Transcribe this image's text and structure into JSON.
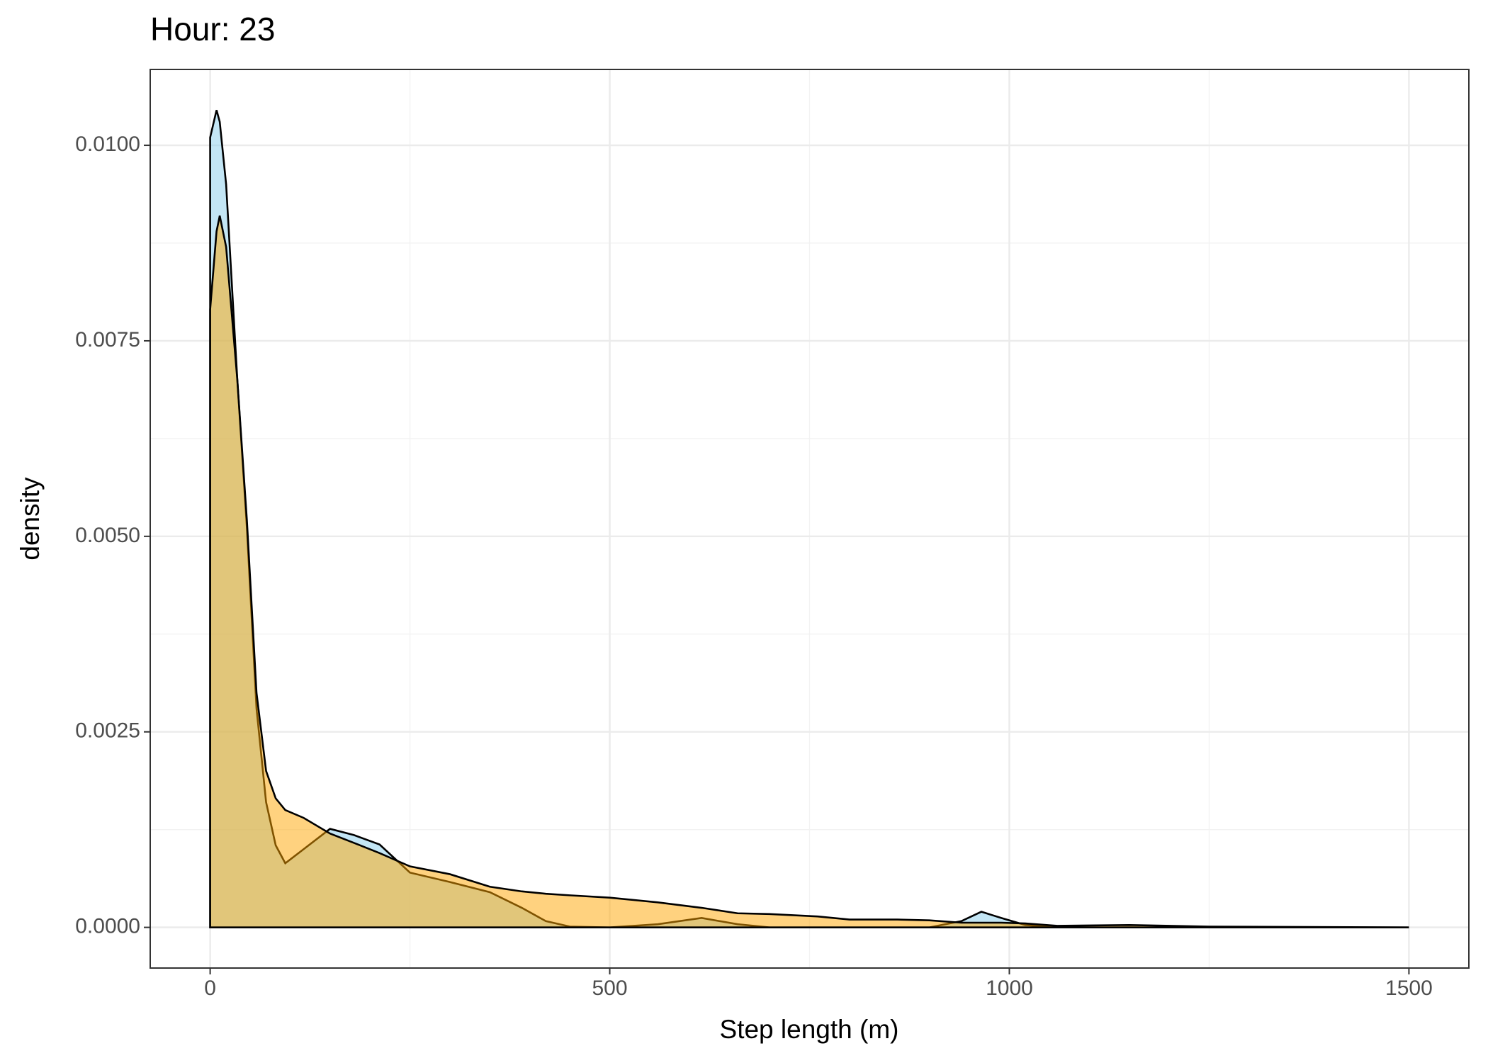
{
  "chart_data": {
    "type": "area",
    "title": "Hour: 23",
    "xlabel": "Step length (m)",
    "ylabel": "density",
    "x": [
      0,
      8,
      12,
      20,
      34,
      46,
      58,
      70,
      82,
      94,
      117,
      150,
      180,
      212,
      250,
      300,
      350,
      390,
      420,
      450,
      500,
      560,
      615,
      660,
      700,
      760,
      800,
      860,
      900,
      940,
      965,
      990,
      1020,
      1060,
      1150,
      1250,
      1500
    ],
    "series": [
      {
        "color": "#87ceeb",
        "values": [
          0.0101,
          0.01045,
          0.0103,
          0.0095,
          0.007,
          0.0051,
          0.0028,
          0.0016,
          0.00105,
          0.00082,
          0.001,
          0.00126,
          0.00118,
          0.00106,
          0.0007,
          0.00058,
          0.00045,
          0.00025,
          8e-05,
          1e-05,
          0,
          4e-05,
          0.00012,
          4e-05,
          0,
          0,
          0,
          0,
          0,
          8e-05,
          0.0002,
          0.00012,
          3e-05,
          0,
          0,
          0,
          0
        ]
      },
      {
        "color": "#ffa500",
        "values": [
          0.0079,
          0.0089,
          0.0091,
          0.0087,
          0.007,
          0.0052,
          0.003,
          0.002,
          0.00165,
          0.0015,
          0.0014,
          0.0012,
          0.00108,
          0.00095,
          0.00078,
          0.00068,
          0.00052,
          0.00046,
          0.00043,
          0.00041,
          0.00038,
          0.00032,
          0.00025,
          0.00018,
          0.00017,
          0.00014,
          0.0001,
          0.0001,
          9e-05,
          6e-05,
          6e-05,
          6e-05,
          5e-05,
          2e-05,
          3e-05,
          1e-05,
          0
        ]
      }
    ],
    "xlim": [
      -75,
      1575
    ],
    "ylim": [
      -0.00052,
      0.01097
    ],
    "xticks": [
      0,
      500,
      1000,
      1500
    ],
    "yticks": [
      {
        "value": 0,
        "label": "0.0000"
      },
      {
        "value": 0.0025,
        "label": "0.0025"
      },
      {
        "value": 0.005,
        "label": "0.0050"
      },
      {
        "value": 0.0075,
        "label": "0.0075"
      },
      {
        "value": 0.01,
        "label": "0.0100"
      }
    ],
    "xminorticks": [
      250,
      750,
      1250
    ],
    "yminorticks": [
      0.00125,
      0.00375,
      0.00625,
      0.00875
    ],
    "grid": true
  }
}
